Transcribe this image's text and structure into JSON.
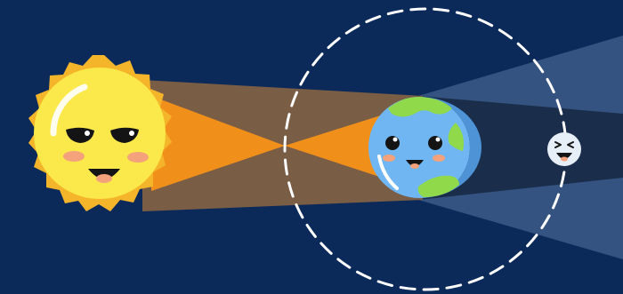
{
  "colors": {
    "background": "#0b2a5a",
    "sun_body": "#fbe84a",
    "sun_rays": "#f5b52a",
    "sun_rays_edge": "#f2a21f",
    "light_cone": "#7a5d45",
    "light_core": "#f0901a",
    "earth_ocean": "#6fb6f3",
    "earth_land": "#8fd94a",
    "umbra": "#1a2e4b",
    "penumbra": "#3c5a87",
    "moon": "#e6eef7",
    "orbit": "#ffffff",
    "face": "#141414",
    "blush": "#f3a27b"
  },
  "scene": {
    "sun": {
      "name": "sun",
      "expression": "smug",
      "icon": "smiling-sun-face"
    },
    "earth": {
      "name": "earth",
      "expression": "happy",
      "icon": "smiling-earth-face"
    },
    "moon": {
      "name": "moon",
      "expression": "squinting",
      "icon": "squinting-moon-face"
    },
    "orbit": {
      "style": "dashed"
    }
  }
}
